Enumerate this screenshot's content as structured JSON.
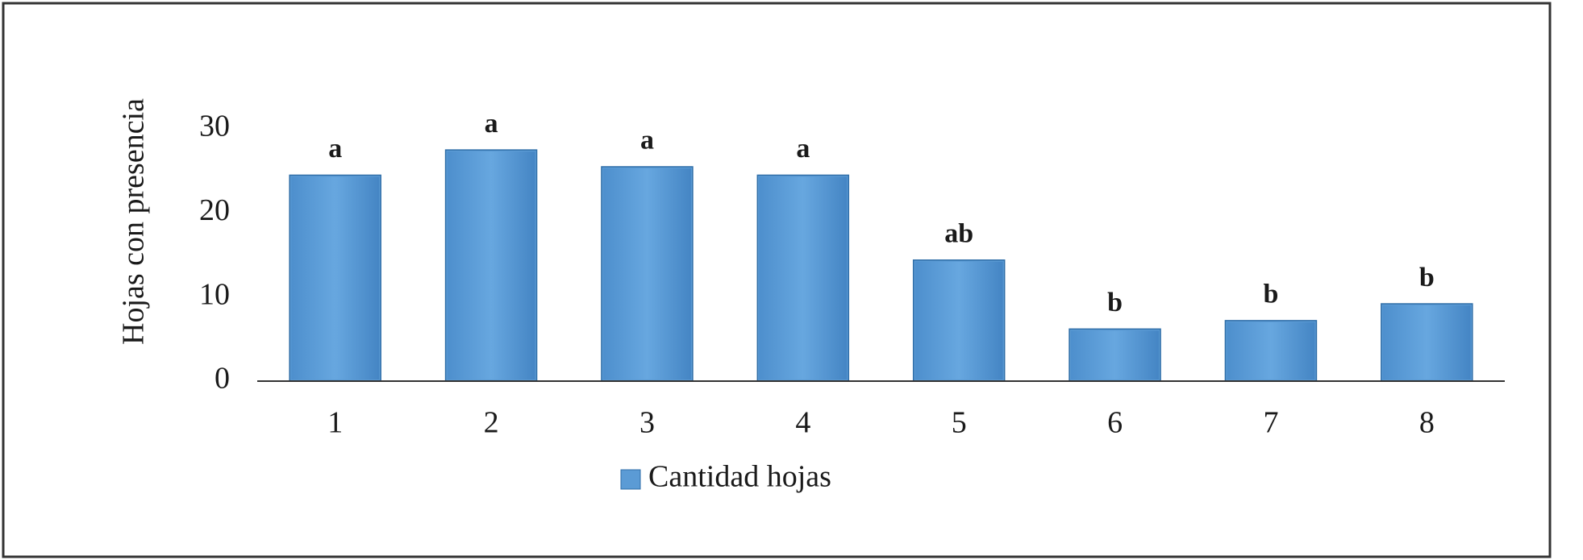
{
  "chart_data": {
    "type": "bar",
    "y_label": "Hojas con presencia",
    "categories": [
      "1",
      "2",
      "3",
      "4",
      "5",
      "6",
      "7",
      "8"
    ],
    "series": [
      {
        "name": "Cantidad hojas",
        "color": "#5b9bd5",
        "values": [
          24.5,
          27.5,
          25.5,
          24.5,
          14.4,
          6.2,
          7.2,
          9.2
        ]
      }
    ],
    "annotations": [
      "a",
      "a",
      "a",
      "a",
      "ab",
      "b",
      "b",
      "b"
    ],
    "ylim": [
      0,
      30
    ],
    "yticks": [
      0,
      10,
      20,
      30
    ],
    "grid": false
  }
}
